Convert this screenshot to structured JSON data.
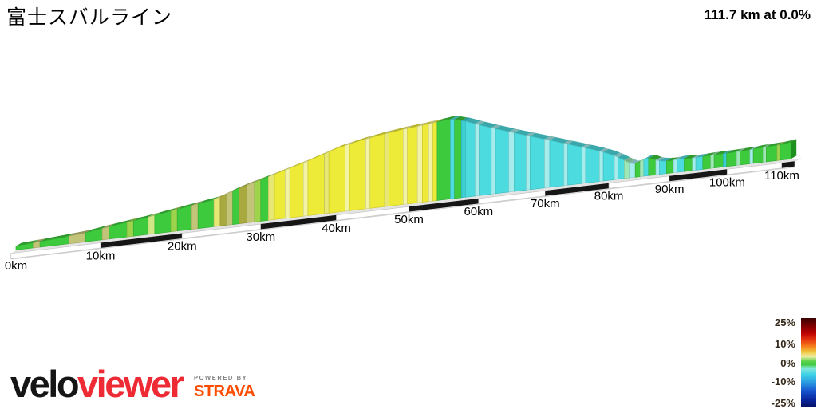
{
  "header": {
    "title": "富士スバルライン",
    "summary": "111.7 km at 0.0%"
  },
  "footer": {
    "brand_black": "velo",
    "brand_red": "viewer",
    "powered_by": "POWERED BY",
    "strava": "STRAVA"
  },
  "colors": {
    "brand_red": "#ee2b35",
    "brand_black": "#151515",
    "strava_orange": "#fc4c02",
    "powered_gray": "#7f7f7f",
    "platform_top": "#e4e4e4",
    "platform_black_block": "#161616",
    "platform_white_block": "#ffffff"
  },
  "chart_data": {
    "type": "area",
    "title": "富士スバルライン",
    "summary_text": "111.7 km at 0.0%",
    "total_distance_km": 111.7,
    "average_gradient_pct": 0.0,
    "x_tick_labels": [
      "0km",
      "10km",
      "20km",
      "30km",
      "40km",
      "50km",
      "60km",
      "70km",
      "80km",
      "90km",
      "100km",
      "110km"
    ],
    "x_tick_km": [
      0,
      10,
      20,
      30,
      40,
      50,
      60,
      70,
      80,
      90,
      100,
      110
    ],
    "legend": {
      "tick_labels": [
        "25%",
        "10%",
        "0%",
        "-10%",
        "-25%"
      ],
      "tick_values": [
        25,
        10,
        0,
        -10,
        -25
      ],
      "gradient_stops": [
        [
          0,
          "#3c0000"
        ],
        [
          0.08,
          "#780000"
        ],
        [
          0.17,
          "#bb0000"
        ],
        [
          0.25,
          "#e93c10"
        ],
        [
          0.32,
          "#f5821d"
        ],
        [
          0.38,
          "#eec93e"
        ],
        [
          0.43,
          "#f1eda4"
        ],
        [
          0.48,
          "#62d44e"
        ],
        [
          0.52,
          "#3cc93c"
        ],
        [
          0.56,
          "#86e8da"
        ],
        [
          0.63,
          "#3fd2e6"
        ],
        [
          0.72,
          "#2b9ce2"
        ],
        [
          0.82,
          "#1551cd"
        ],
        [
          0.92,
          "#0a2399"
        ],
        [
          1,
          "#051060"
        ]
      ]
    },
    "profile_points": [
      [
        0,
        0.05
      ],
      [
        3,
        0.07
      ],
      [
        5,
        0.085
      ],
      [
        8,
        0.11
      ],
      [
        10,
        0.14
      ],
      [
        13,
        0.18
      ],
      [
        15,
        0.205
      ],
      [
        18,
        0.25
      ],
      [
        20,
        0.28
      ],
      [
        22,
        0.31
      ],
      [
        24,
        0.34
      ],
      [
        25,
        0.37
      ],
      [
        26,
        0.41
      ],
      [
        28,
        0.47
      ],
      [
        30,
        0.52
      ],
      [
        33,
        0.6
      ],
      [
        36,
        0.68
      ],
      [
        40,
        0.8
      ],
      [
        43,
        0.86
      ],
      [
        46,
        0.905
      ],
      [
        49,
        0.94
      ],
      [
        52,
        0.965
      ],
      [
        54,
        0.985
      ],
      [
        55.5,
        1.0
      ],
      [
        56.5,
        0.99
      ],
      [
        58,
        0.955
      ],
      [
        60,
        0.89
      ],
      [
        63,
        0.8
      ],
      [
        66,
        0.715
      ],
      [
        69,
        0.635
      ],
      [
        72,
        0.555
      ],
      [
        75,
        0.475
      ],
      [
        78,
        0.395
      ],
      [
        80,
        0.335
      ],
      [
        81.5,
        0.275
      ],
      [
        83,
        0.205
      ],
      [
        84,
        0.165
      ],
      [
        85,
        0.185
      ],
      [
        86,
        0.225
      ],
      [
        87,
        0.21
      ],
      [
        88,
        0.175
      ],
      [
        89,
        0.16
      ],
      [
        90,
        0.155
      ],
      [
        92,
        0.165
      ],
      [
        94,
        0.155
      ],
      [
        96,
        0.16
      ],
      [
        98,
        0.165
      ],
      [
        100,
        0.165
      ],
      [
        102,
        0.17
      ],
      [
        104,
        0.175
      ],
      [
        106,
        0.185
      ],
      [
        108,
        0.19
      ],
      [
        110,
        0.195
      ],
      [
        111.7,
        0.21
      ]
    ],
    "segments": [
      [
        0,
        2,
        "#3dcb3d"
      ],
      [
        2,
        2.8,
        "#c2c478"
      ],
      [
        2.8,
        6.2,
        "#3dcb3d"
      ],
      [
        6.2,
        8.2,
        "#c2c478"
      ],
      [
        8.2,
        10.2,
        "#3dcb3d"
      ],
      [
        10.2,
        11,
        "#c2c478"
      ],
      [
        11,
        13.2,
        "#3dcb3d"
      ],
      [
        13.2,
        14,
        "#9ed34c"
      ],
      [
        14,
        15.8,
        "#3dcb3d"
      ],
      [
        15.8,
        16.6,
        "#cfe784"
      ],
      [
        16.6,
        18.6,
        "#3dcb3d"
      ],
      [
        18.6,
        19.4,
        "#9ed34c"
      ],
      [
        19.4,
        21.2,
        "#3dcb3d"
      ],
      [
        21.2,
        22,
        "#c2c478"
      ],
      [
        22,
        24,
        "#3dcb3d"
      ],
      [
        24,
        24.8,
        "#e7e776"
      ],
      [
        24.8,
        25.6,
        "#a8aa40"
      ],
      [
        25.6,
        26.4,
        "#c2c478"
      ],
      [
        26.4,
        27.2,
        "#3dcb3d"
      ],
      [
        27.2,
        28.2,
        "#a8aa40"
      ],
      [
        28.2,
        29.2,
        "#c2c478"
      ],
      [
        29.2,
        30,
        "#9ed34c"
      ],
      [
        30,
        31,
        "#3dcb3d"
      ],
      [
        31,
        31.8,
        "#e7e776"
      ],
      [
        31.8,
        33.2,
        "#eeeb38"
      ],
      [
        33.2,
        33.8,
        "#f3f3a6"
      ],
      [
        33.8,
        35.6,
        "#eeeb38"
      ],
      [
        35.6,
        36.2,
        "#f3f3a6"
      ],
      [
        36.2,
        38.4,
        "#eeeb38"
      ],
      [
        38.4,
        39,
        "#e7e776"
      ],
      [
        39,
        41.2,
        "#eeeb38"
      ],
      [
        41.2,
        41.8,
        "#f3f3a6"
      ],
      [
        41.8,
        44,
        "#eeeb38"
      ],
      [
        44,
        44.6,
        "#f3f3a6"
      ],
      [
        44.6,
        46.6,
        "#eeeb38"
      ],
      [
        46.6,
        47.2,
        "#e7e776"
      ],
      [
        47.2,
        49.2,
        "#eeeb38"
      ],
      [
        49.2,
        49.8,
        "#f3f3a6"
      ],
      [
        49.8,
        51.2,
        "#eeeb38"
      ],
      [
        51.2,
        51.9,
        "#f3f3a6"
      ],
      [
        51.9,
        52.8,
        "#eeeb38"
      ],
      [
        52.8,
        53.4,
        "#f3f3a6"
      ],
      [
        53.4,
        54,
        "#eeeb38"
      ],
      [
        54,
        55.9,
        "#3dcb3d"
      ],
      [
        55.9,
        56.5,
        "#4cdce0"
      ],
      [
        56.5,
        57.5,
        "#3dcb3d"
      ],
      [
        57.5,
        58.1,
        "#3bcfd4"
      ],
      [
        58.1,
        59.5,
        "#4cdce0"
      ],
      [
        59.5,
        60.1,
        "#a5eded"
      ],
      [
        60.1,
        61.9,
        "#4cdce0"
      ],
      [
        61.9,
        62.5,
        "#a5eded"
      ],
      [
        62.5,
        64.5,
        "#4cdce0"
      ],
      [
        64.5,
        65.3,
        "#a5eded"
      ],
      [
        65.3,
        67.1,
        "#4cdce0"
      ],
      [
        67.1,
        67.7,
        "#a5eded"
      ],
      [
        67.7,
        69.9,
        "#4cdce0"
      ],
      [
        69.9,
        70.7,
        "#a5eded"
      ],
      [
        70.7,
        72.9,
        "#4cdce0"
      ],
      [
        72.9,
        73.5,
        "#a5eded"
      ],
      [
        73.5,
        75.7,
        "#4cdce0"
      ],
      [
        75.7,
        76.3,
        "#a5eded"
      ],
      [
        76.3,
        78.5,
        "#4cdce0"
      ],
      [
        78.5,
        79.1,
        "#a5eded"
      ],
      [
        79.1,
        80.9,
        "#4cdce0"
      ],
      [
        80.9,
        81.5,
        "#a5eded"
      ],
      [
        81.5,
        82.5,
        "#4cdce0"
      ],
      [
        82.5,
        83.3,
        "#9de8b5"
      ],
      [
        83.3,
        84.3,
        "#a5eded"
      ],
      [
        84.3,
        85.1,
        "#3dcb3d"
      ],
      [
        85.1,
        85.7,
        "#9de8b5"
      ],
      [
        85.7,
        86.5,
        "#4cdce0"
      ],
      [
        86.5,
        87.7,
        "#3dcb3d"
      ],
      [
        87.7,
        88.3,
        "#a5eded"
      ],
      [
        88.3,
        89.5,
        "#4cdce0"
      ],
      [
        89.5,
        90.7,
        "#3dcb3d"
      ],
      [
        90.7,
        91.3,
        "#a5eded"
      ],
      [
        91.3,
        92.5,
        "#4cdce0"
      ],
      [
        92.5,
        93.9,
        "#3dcb3d"
      ],
      [
        93.9,
        94.5,
        "#a5eded"
      ],
      [
        94.5,
        95.7,
        "#4cdce0"
      ],
      [
        95.7,
        97.1,
        "#3dcb3d"
      ],
      [
        97.1,
        97.7,
        "#9de8b5"
      ],
      [
        97.7,
        99.3,
        "#3dcb3d"
      ],
      [
        99.3,
        99.9,
        "#3bcfd4"
      ],
      [
        99.9,
        101.7,
        "#3dcb3d"
      ],
      [
        101.7,
        102.3,
        "#9de8b5"
      ],
      [
        102.3,
        104.1,
        "#3dcb3d"
      ],
      [
        104.1,
        104.7,
        "#a5eded"
      ],
      [
        104.7,
        106.5,
        "#3dcb3d"
      ],
      [
        106.5,
        107.1,
        "#9de8b5"
      ],
      [
        107.1,
        109.1,
        "#3dcb3d"
      ],
      [
        109.1,
        109.7,
        "#9ed34c"
      ],
      [
        109.7,
        111.7,
        "#3dcb3d"
      ]
    ],
    "baseline_blocks": [
      [
        -0.6,
        10,
        "white"
      ],
      [
        10,
        20,
        "black"
      ],
      [
        20,
        30,
        "white"
      ],
      [
        30,
        40,
        "black"
      ],
      [
        40,
        50,
        "white"
      ],
      [
        50,
        60,
        "black"
      ],
      [
        60,
        70,
        "white"
      ],
      [
        70,
        80,
        "black"
      ],
      [
        80,
        90,
        "white"
      ],
      [
        90,
        100,
        "black"
      ],
      [
        100,
        110,
        "white"
      ],
      [
        110,
        112.4,
        "black"
      ]
    ]
  }
}
